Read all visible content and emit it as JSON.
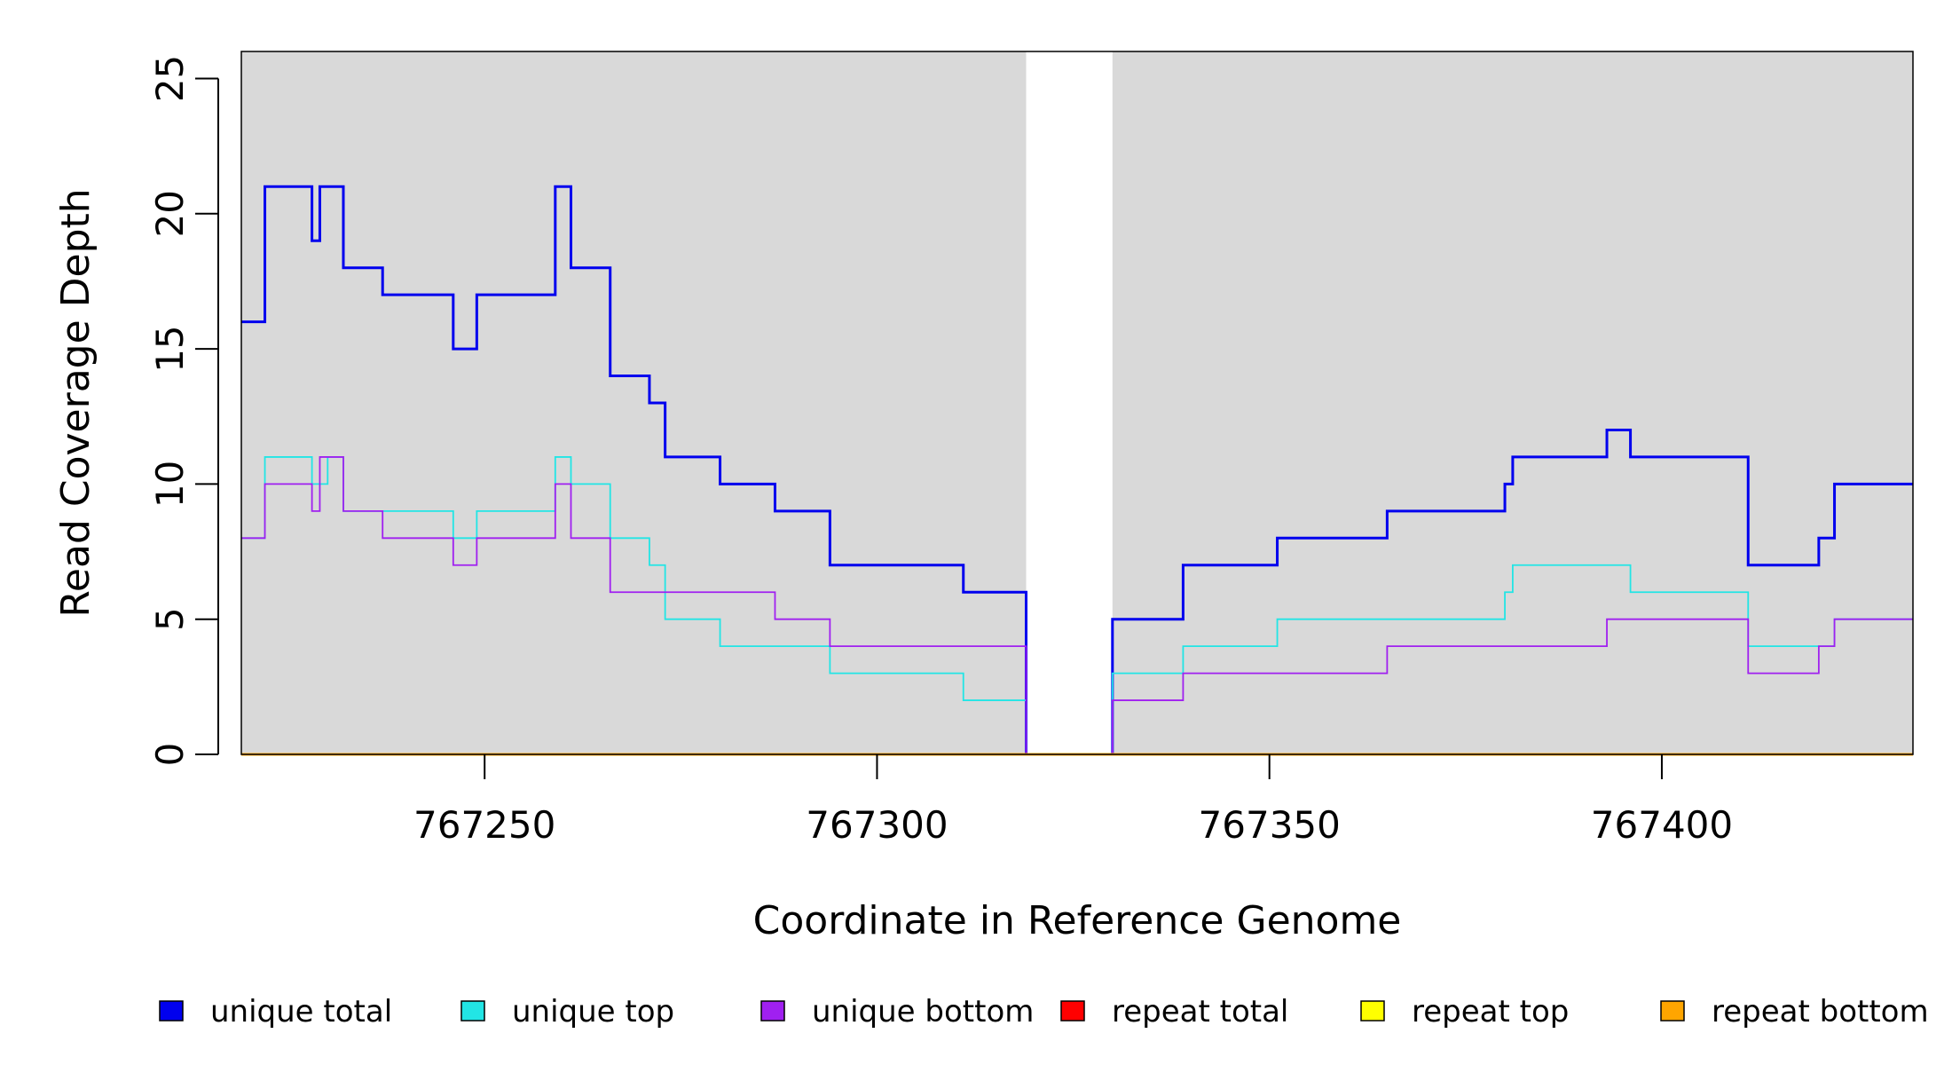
{
  "chart_data": {
    "type": "line",
    "title": "",
    "xlabel": "Coordinate in Reference Genome",
    "ylabel": "Read Coverage Depth",
    "xlim": [
      767219,
      767432
    ],
    "ylim": [
      0,
      26
    ],
    "x_ticks": [
      767250,
      767300,
      767350,
      767400
    ],
    "x_tick_labels": [
      "767250",
      "767300",
      "767350",
      "767400"
    ],
    "y_ticks": [
      0,
      5,
      10,
      15,
      20,
      25
    ],
    "y_tick_labels": [
      "0",
      "5",
      "10",
      "15",
      "20",
      "25"
    ],
    "grid": false,
    "background": "#d9d9d9",
    "highlight_region": [
      767319,
      767330
    ],
    "highlight_color": "#ffffff",
    "legend_position": "bottom",
    "series": [
      {
        "name": "unique total",
        "color": "#0000ee",
        "x": [
          767219,
          767222,
          767228,
          767229,
          767230,
          767232,
          767237,
          767246,
          767249,
          767259,
          767261,
          767266,
          767271,
          767273,
          767280,
          767287,
          767294,
          767311,
          767319,
          767330,
          767339,
          767351,
          767365,
          767380,
          767381,
          767393,
          767396,
          767411,
          767420,
          767422,
          767432
        ],
        "values": [
          16,
          21,
          19,
          21,
          21,
          18,
          17,
          15,
          17,
          21,
          18,
          14,
          13,
          11,
          10,
          9,
          7,
          6,
          0,
          5,
          7,
          8,
          9,
          10,
          11,
          12,
          11,
          7,
          8,
          10,
          10
        ]
      },
      {
        "name": "unique top",
        "color": "#22e5e5",
        "x": [
          767219,
          767222,
          767228,
          767229,
          767230,
          767232,
          767237,
          767246,
          767249,
          767259,
          767261,
          767266,
          767271,
          767273,
          767280,
          767294,
          767311,
          767319,
          767330,
          767339,
          767351,
          767380,
          767381,
          767396,
          767411,
          767422,
          767432
        ],
        "values": [
          8,
          11,
          10,
          10,
          11,
          9,
          9,
          8,
          9,
          11,
          10,
          8,
          7,
          5,
          4,
          3,
          2,
          0,
          3,
          4,
          5,
          6,
          7,
          6,
          4,
          5,
          5
        ]
      },
      {
        "name": "unique bottom",
        "color": "#a020f0",
        "x": [
          767219,
          767222,
          767228,
          767229,
          767230,
          767232,
          767237,
          767246,
          767249,
          767259,
          767261,
          767266,
          767287,
          767294,
          767319,
          767330,
          767339,
          767365,
          767393,
          767411,
          767420,
          767422,
          767432
        ],
        "values": [
          8,
          10,
          9,
          11,
          11,
          9,
          8,
          7,
          8,
          10,
          8,
          6,
          5,
          4,
          0,
          2,
          3,
          4,
          5,
          3,
          4,
          5,
          5
        ]
      },
      {
        "name": "repeat total",
        "color": "#ff0000",
        "x": [
          767219,
          767432
        ],
        "values": [
          0,
          0
        ]
      },
      {
        "name": "repeat top",
        "color": "#ffff00",
        "x": [
          767219,
          767432
        ],
        "values": [
          0,
          0
        ]
      },
      {
        "name": "repeat bottom",
        "color": "#ffa500",
        "x": [
          767219,
          767432
        ],
        "values": [
          0,
          0
        ]
      }
    ]
  }
}
